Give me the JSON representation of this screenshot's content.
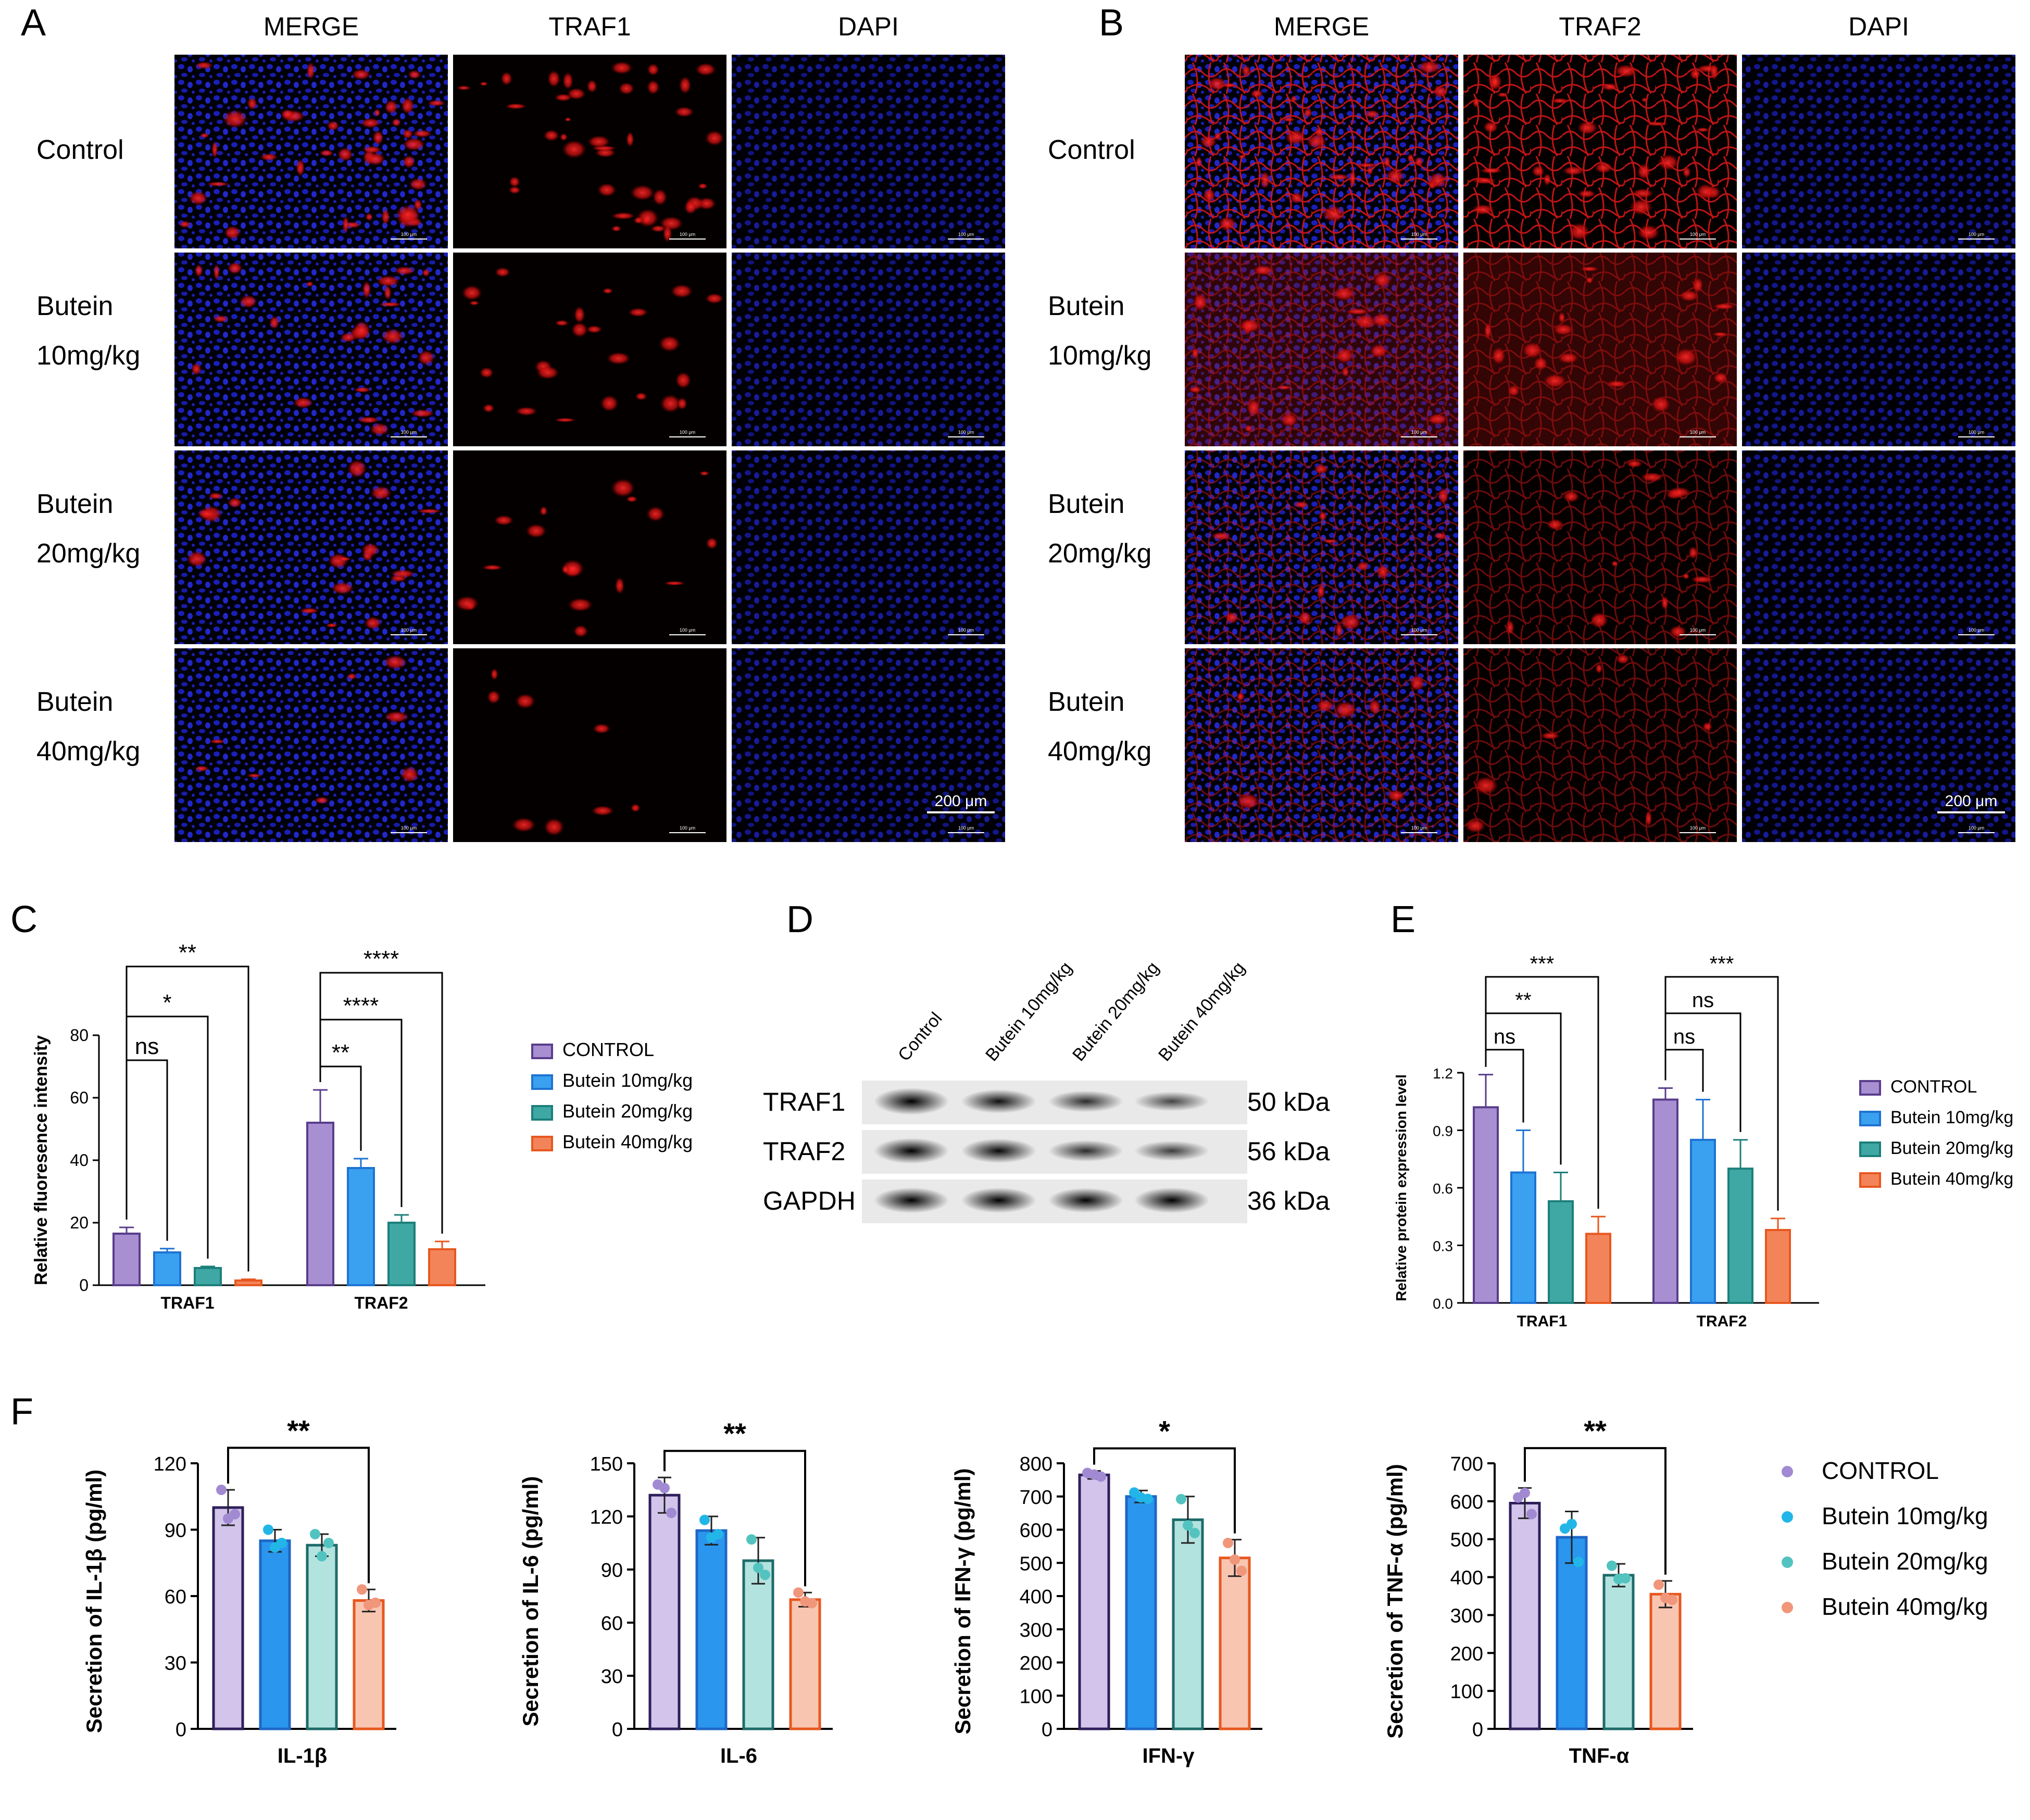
{
  "panel_letters": {
    "a": "A",
    "b": "B",
    "c": "C",
    "d": "D",
    "e": "E",
    "f": "F"
  },
  "micro_a": {
    "columns": [
      "MERGE",
      "TRAF1",
      "DAPI"
    ],
    "rows": [
      [
        "Control"
      ],
      [
        "Butein",
        "10mg/kg"
      ],
      [
        "Butein",
        "20mg/kg"
      ],
      [
        "Butein",
        "40mg/kg"
      ]
    ],
    "scale_label": "200 μm",
    "tile_scale_label": "100 μm"
  },
  "micro_b": {
    "columns": [
      "MERGE",
      "TRAF2",
      "DAPI"
    ],
    "rows": [
      [
        "Control"
      ],
      [
        "Butein",
        "10mg/kg"
      ],
      [
        "Butein",
        "20mg/kg"
      ],
      [
        "Butein",
        "40mg/kg"
      ]
    ],
    "scale_label": "200 μm",
    "tile_scale_label": "100 μm"
  },
  "western": {
    "lanes": [
      "Control",
      "Butein 10mg/kg",
      "Butein 20mg/kg",
      "Butein 40mg/kg"
    ],
    "bands": [
      {
        "name": "TRAF1",
        "kda": "50 kDa",
        "intensity": [
          1.0,
          0.78,
          0.62,
          0.48
        ]
      },
      {
        "name": "TRAF2",
        "kda": "56 kDa",
        "intensity": [
          0.9,
          0.82,
          0.62,
          0.52
        ]
      },
      {
        "name": "GAPDH",
        "kda": "36 kDa",
        "intensity": [
          0.9,
          0.88,
          0.85,
          0.9
        ]
      }
    ]
  },
  "colors": {
    "dark_series": [
      "#5a3d8c",
      "#1e73d2",
      "#1d7f7a",
      "#e8571f"
    ],
    "bar_fill": [
      "#a78fd1",
      "#3aa0f0",
      "#3fa8a4",
      "#f3845a"
    ],
    "light_fill": [
      "#d2c4ea",
      "#2a96ee",
      "#b3e3df",
      "#f8c5b1"
    ],
    "light_edge": [
      "#2e1e5a",
      "#1e67c7",
      "#1e6b69",
      "#e8571f"
    ],
    "dots": [
      "#a18ad2",
      "#22b6e8",
      "#53c3c0",
      "#f0967a"
    ]
  },
  "chart_data": [
    {
      "id": "C",
      "type": "bar",
      "ylabel": "Relative fluoresence intensity",
      "categories": [
        "TRAF1",
        "TRAF2"
      ],
      "ylim": [
        0,
        80
      ],
      "yticks": [
        0,
        20,
        40,
        60,
        80
      ],
      "legend": "right",
      "series": [
        {
          "name": "CONTROL",
          "values": [
            16.5,
            52.0
          ],
          "errors": [
            2.0,
            10.5
          ]
        },
        {
          "name": "Butein 10mg/kg",
          "values": [
            10.5,
            37.5
          ],
          "errors": [
            1.2,
            3.0
          ]
        },
        {
          "name": "Butein 20mg/kg",
          "values": [
            5.5,
            20.0
          ],
          "errors": [
            0.5,
            2.5
          ]
        },
        {
          "name": "Butein 40mg/kg",
          "values": [
            1.5,
            11.5
          ],
          "errors": [
            0.4,
            2.5
          ]
        }
      ],
      "annotations": [
        {
          "text": "ns",
          "group": 0,
          "from": 0,
          "to": 1,
          "y": 72
        },
        {
          "text": "*",
          "group": 0,
          "from": 0,
          "to": 2,
          "y": 86
        },
        {
          "text": "**",
          "group": 0,
          "from": 0,
          "to": 3,
          "y": 102
        },
        {
          "text": "**",
          "group": 1,
          "from": 0,
          "to": 1,
          "y": 70
        },
        {
          "text": "****",
          "group": 1,
          "from": 0,
          "to": 2,
          "y": 85
        },
        {
          "text": "****",
          "group": 1,
          "from": 0,
          "to": 3,
          "y": 100
        }
      ]
    },
    {
      "id": "E",
      "type": "bar",
      "ylabel": "Relative protein expression level",
      "categories": [
        "TRAF1",
        "TRAF2"
      ],
      "ylim": [
        0,
        1.2
      ],
      "yticks": [
        0.0,
        0.3,
        0.6,
        0.9,
        1.2
      ],
      "yticklabels": [
        "0.0",
        "0.3",
        "0.6",
        "0.9",
        "1.2"
      ],
      "legend": "right",
      "series": [
        {
          "name": "CONTROL",
          "values": [
            1.02,
            1.06
          ],
          "errors": [
            0.17,
            0.06
          ]
        },
        {
          "name": "Butein 10mg/kg",
          "values": [
            0.68,
            0.85
          ],
          "errors": [
            0.22,
            0.21
          ]
        },
        {
          "name": "Butein 20mg/kg",
          "values": [
            0.53,
            0.7
          ],
          "errors": [
            0.15,
            0.15
          ]
        },
        {
          "name": "Butein 40mg/kg",
          "values": [
            0.36,
            0.38
          ],
          "errors": [
            0.09,
            0.06
          ]
        }
      ],
      "annotations": [
        {
          "text": "ns",
          "group": 0,
          "from": 0,
          "to": 1,
          "y": 1.32
        },
        {
          "text": "**",
          "group": 0,
          "from": 0,
          "to": 2,
          "y": 1.51
        },
        {
          "text": "***",
          "group": 0,
          "from": 0,
          "to": 3,
          "y": 1.7
        },
        {
          "text": "ns",
          "group": 1,
          "from": 0,
          "to": 1,
          "y": 1.32
        },
        {
          "text": "ns",
          "group": 1,
          "from": 0,
          "to": 2,
          "y": 1.51
        },
        {
          "text": "***",
          "group": 1,
          "from": 0,
          "to": 3,
          "y": 1.7
        }
      ]
    },
    {
      "id": "F1",
      "type": "bar",
      "ylabel": "Secretion of IL-1β (pg/ml)",
      "xlabel": "IL-1β",
      "ylim": [
        0,
        120
      ],
      "yticks": [
        0,
        30,
        60,
        90,
        120
      ],
      "series_names": [
        "CONTROL",
        "Butein 10mg/kg",
        "Butein 20mg/kg",
        "Butein 40mg/kg"
      ],
      "values": [
        100,
        85,
        83,
        58
      ],
      "errors": [
        8,
        5,
        5,
        5
      ],
      "points": [
        [
          108,
          95,
          97
        ],
        [
          90,
          82,
          84
        ],
        [
          88,
          78,
          84
        ],
        [
          63,
          56,
          57
        ]
      ],
      "annotations": [
        {
          "text": "**",
          "from": 0,
          "to": 3,
          "y": 127
        }
      ]
    },
    {
      "id": "F2",
      "type": "bar",
      "ylabel": "Secretion of IL-6 (pg/ml)",
      "xlabel": "IL-6",
      "ylim": [
        0,
        150
      ],
      "yticks": [
        0,
        30,
        60,
        90,
        120,
        150
      ],
      "series_names": [
        "CONTROL",
        "Butein 10mg/kg",
        "Butein 20mg/kg",
        "Butein 40mg/kg"
      ],
      "values": [
        132,
        112,
        95,
        73
      ],
      "errors": [
        10,
        8,
        13,
        4
      ],
      "points": [
        [
          138,
          136,
          122
        ],
        [
          118,
          108,
          110
        ],
        [
          107,
          91,
          87
        ],
        [
          77,
          72,
          71
        ]
      ],
      "annotations": [
        {
          "text": "**",
          "from": 0,
          "to": 3,
          "y": 157
        }
      ]
    },
    {
      "id": "F3",
      "type": "bar",
      "ylabel": "Secretion of IFN-γ (pg/ml)",
      "xlabel": "IFN-γ",
      "ylim": [
        0,
        800
      ],
      "yticks": [
        0,
        100,
        200,
        300,
        400,
        500,
        600,
        700,
        800
      ],
      "series_names": [
        "CONTROL",
        "Butein 10mg/kg",
        "Butein 20mg/kg",
        "Butein 40mg/kg"
      ],
      "values": [
        765,
        700,
        630,
        515
      ],
      "errors": [
        12,
        18,
        70,
        55
      ],
      "points": [
        [
          771,
          766,
          760
        ],
        [
          712,
          697,
          693
        ],
        [
          692,
          613,
          590
        ],
        [
          560,
          510,
          476
        ]
      ],
      "annotations": [
        {
          "text": "*",
          "from": 0,
          "to": 3,
          "y": 845
        }
      ]
    },
    {
      "id": "F4",
      "type": "bar",
      "ylabel": "Secretion of TNF-α (pg/ml)",
      "xlabel": "TNF-α",
      "ylim": [
        0,
        700
      ],
      "yticks": [
        0,
        100,
        200,
        300,
        400,
        500,
        600,
        700
      ],
      "series_names": [
        "CONTROL",
        "Butein 10mg/kg",
        "Butein 20mg/kg",
        "Butein 40mg/kg"
      ],
      "values": [
        595,
        505,
        405,
        355
      ],
      "errors": [
        40,
        68,
        30,
        35
      ],
      "points": [
        [
          610,
          622,
          566
        ],
        [
          528,
          540,
          440
        ],
        [
          430,
          395,
          397
        ],
        [
          380,
          345,
          340
        ]
      ],
      "annotations": [
        {
          "text": "**",
          "from": 0,
          "to": 3,
          "y": 740
        }
      ]
    }
  ],
  "legend_f": [
    "CONTROL",
    "Butein 10mg/kg",
    "Butein 20mg/kg",
    "Butein 40mg/kg"
  ]
}
